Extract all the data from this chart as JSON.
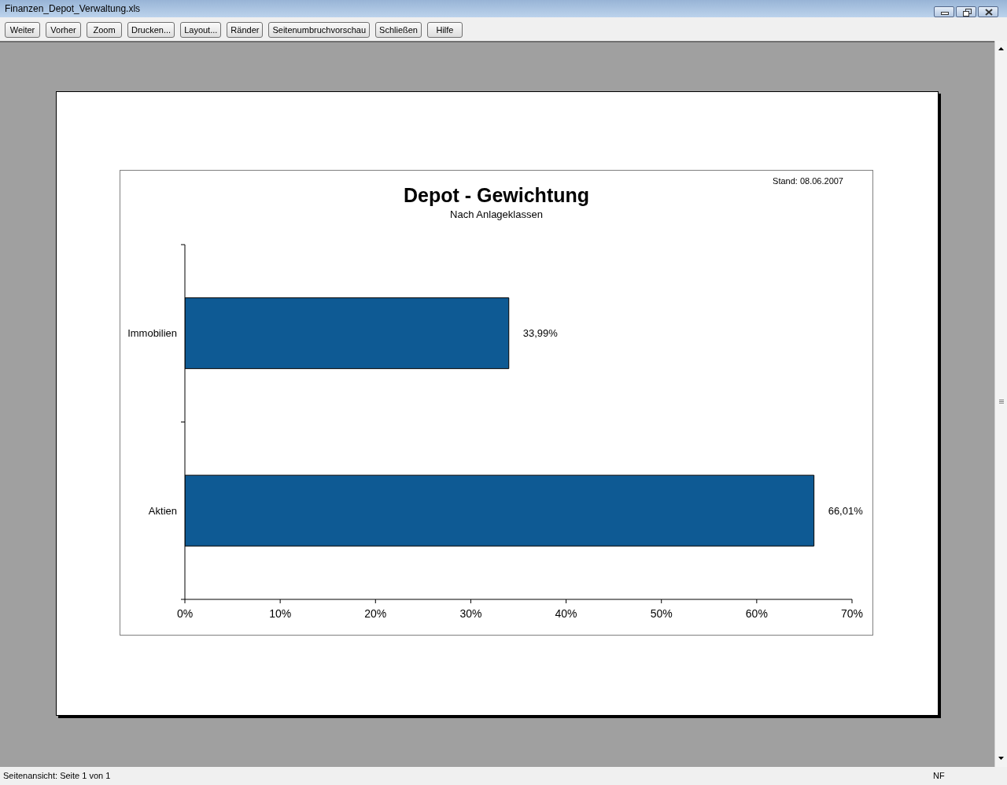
{
  "chart_data": {
    "type": "bar",
    "orientation": "horizontal",
    "title": "Depot - Gewichtung",
    "subtitle": "Nach Anlageklassen",
    "categories": [
      "Immobilien",
      "Aktien"
    ],
    "values": [
      33.99,
      66.01
    ],
    "value_labels": [
      "33,99%",
      "66,01%"
    ],
    "color": "#0e5a94",
    "xlim": [
      0,
      70
    ],
    "xticks": [
      {
        "value": 0,
        "label": "0%"
      },
      {
        "value": 10,
        "label": "10%"
      },
      {
        "value": 20,
        "label": "20%"
      },
      {
        "value": 30,
        "label": "30%"
      },
      {
        "value": 40,
        "label": "40%"
      },
      {
        "value": 50,
        "label": "50%"
      },
      {
        "value": 60,
        "label": "60%"
      },
      {
        "value": 70,
        "label": "70%"
      }
    ],
    "annotations": [
      "Stand: 08.06.2007",
      "Finanzen_Depot_Verwaltung.xls",
      "Weiter",
      "Vorher",
      "Zoom",
      "Drucken...",
      "Layout...",
      "Ränder",
      "Seitenumbruchvorschau",
      "Schließen",
      "Hilfe",
      "Seitenansicht: Seite 1 von 1",
      "NF"
    ]
  }
}
